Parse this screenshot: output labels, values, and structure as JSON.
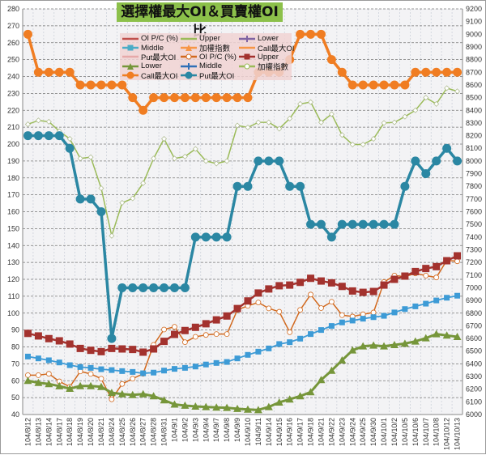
{
  "chart_data": {
    "type": "line",
    "title": "選擇權最大OI＆買賣權OI比",
    "categories": [
      "104/8/12",
      "104/8/13",
      "104/8/14",
      "104/8/17",
      "104/8/18",
      "104/8/19",
      "104/8/20",
      "104/8/21",
      "104/8/24",
      "104/8/25",
      "104/8/26",
      "104/8/27",
      "104/8/28",
      "104/8/31",
      "104/9/1",
      "104/9/2",
      "104/9/3",
      "104/9/4",
      "104/9/7",
      "104/9/8",
      "104/9/9",
      "104/9/10",
      "104/9/11",
      "104/9/14",
      "104/9/15",
      "104/9/16",
      "104/9/17",
      "104/9/18",
      "104/9/21",
      "104/9/22",
      "104/9/23",
      "104/9/24",
      "104/9/25",
      "104/9/30",
      "104/10/1",
      "104/10/2",
      "104/10/5",
      "104/10/6",
      "104/10/7",
      "104/10/8",
      "104/10/12",
      "104/10/13"
    ],
    "y_left": {
      "range": [
        40,
        280
      ],
      "step": 10
    },
    "y_right": {
      "range": [
        6000,
        9200
      ],
      "step": 100
    },
    "grid": true,
    "legend_placement": "top-center",
    "series": [
      {
        "name": "OI P/C (%)",
        "axis": "left",
        "color": "#d2691e",
        "marker": "hollow-circle",
        "values": [
          63.3,
          63.3,
          64.1,
          59.6,
          56.4,
          65.5,
          64.0,
          61.2,
          49.0,
          58.1,
          61.2,
          64.1,
          81.2,
          90.3,
          91.9,
          82.8,
          86.0,
          87.1,
          87.6,
          87.6,
          101.9,
          104.3,
          106.3,
          102.8,
          100.8,
          88.7,
          101.9,
          111.0,
          103.0,
          106.7,
          98.8,
          98.0,
          99.3,
          100.4,
          118.4,
          122.2,
          121.6,
          123.5,
          122.2,
          121.1,
          131.2,
          130.7
        ]
      },
      {
        "name": "Upper",
        "axis": "left",
        "color": "#a3322e",
        "marker": "square",
        "values": [
          88.0,
          86.5,
          84.9,
          83.6,
          81.7,
          79.1,
          78.0,
          77.2,
          79.1,
          78.8,
          78.5,
          76.9,
          78.8,
          83.3,
          87.4,
          89.7,
          91.6,
          93.7,
          96.0,
          98.3,
          102.7,
          107.2,
          111.9,
          114.3,
          116.2,
          116.6,
          118.2,
          120.6,
          119.0,
          117.9,
          115.8,
          113.1,
          112.3,
          112.8,
          116.6,
          120.0,
          121.9,
          124.6,
          126.4,
          127.5,
          131.0,
          133.9
        ]
      },
      {
        "name": "Middle",
        "axis": "left",
        "color": "#3d9bd6",
        "marker": "small-square",
        "values": [
          74.3,
          73.2,
          72.1,
          70.8,
          69.2,
          68.1,
          67.6,
          66.8,
          66.3,
          65.7,
          65.2,
          64.4,
          64.8,
          66.0,
          67.0,
          67.6,
          68.4,
          69.6,
          70.5,
          71.1,
          73.2,
          75.3,
          77.2,
          79.1,
          81.7,
          82.8,
          84.9,
          87.6,
          90.0,
          92.4,
          94.5,
          95.6,
          96.7,
          97.6,
          98.4,
          100.4,
          102.4,
          104.0,
          105.6,
          107.5,
          109.1,
          110.3
        ]
      },
      {
        "name": "Lower",
        "axis": "left",
        "color": "#76963a",
        "marker": "triangle",
        "values": [
          60.0,
          58.8,
          58.1,
          56.8,
          55.3,
          56.9,
          56.9,
          56.4,
          52.9,
          52.1,
          51.6,
          52.1,
          50.9,
          48.5,
          46.0,
          45.3,
          44.8,
          44.5,
          44.2,
          44.0,
          43.4,
          43.0,
          42.7,
          44.5,
          47.2,
          49.0,
          50.9,
          53.3,
          60.5,
          66.0,
          72.1,
          78.0,
          80.4,
          80.9,
          80.4,
          81.2,
          82.0,
          83.3,
          85.2,
          87.6,
          86.8,
          86.0
        ]
      },
      {
        "name": "加權指數",
        "axis": "right",
        "color": "#9bbb59",
        "marker": "white-diamond",
        "values": [
          8290,
          8320,
          8310,
          8235,
          8175,
          8020,
          8030,
          7785,
          7410,
          7670,
          7705,
          7825,
          8020,
          8175,
          8020,
          8035,
          8095,
          8000,
          7980,
          8000,
          8280,
          8265,
          8305,
          8305,
          8255,
          8335,
          8450,
          8465,
          8305,
          8370,
          8205,
          8130,
          8130,
          8175,
          8300,
          8305,
          8350,
          8400,
          8500,
          8450,
          8575,
          8550
        ]
      },
      {
        "name": "Call最大OI",
        "axis": "right",
        "color": "#f07d22",
        "marker": "circle",
        "values": [
          9000,
          8700,
          8700,
          8700,
          8700,
          8600,
          8600,
          8600,
          8600,
          8600,
          8500,
          8400,
          8500,
          8500,
          8500,
          8500,
          8500,
          8500,
          8500,
          8500,
          8500,
          8500,
          8700,
          8700,
          8700,
          8800,
          9000,
          9000,
          9000,
          8800,
          8700,
          8600,
          8600,
          8600,
          8600,
          8600,
          8600,
          8700,
          8700,
          8700,
          8700,
          8700
        ]
      },
      {
        "name": "Put最大OI",
        "axis": "right",
        "color": "#2b87a3",
        "marker": "circle",
        "values": [
          8200,
          8200,
          8200,
          8200,
          8100,
          7700,
          7700,
          7600,
          6600,
          7000,
          7000,
          7000,
          7000,
          7000,
          7000,
          7000,
          7400,
          7400,
          7400,
          7400,
          7800,
          7800,
          8000,
          8000,
          8000,
          7800,
          7800,
          7500,
          7500,
          7400,
          7500,
          7500,
          7500,
          7500,
          7500,
          7500,
          7800,
          8000,
          7900,
          8000,
          8100,
          8000
        ]
      }
    ],
    "legend": [
      {
        "label": "OI P/C (%)",
        "color": "#c0504d",
        "marker": "line"
      },
      {
        "label": "Upper",
        "color": "#9bbb59",
        "marker": "line"
      },
      {
        "label": "Lower",
        "color": "#8064a2",
        "marker": "diamond"
      },
      {
        "label": "Middle",
        "color": "#4bacc6",
        "marker": "square"
      },
      {
        "label": "加權指數",
        "color": "#f79646",
        "marker": "triangle"
      },
      {
        "label": "Call最大OI",
        "color": "#f79646",
        "marker": "line"
      },
      {
        "label": "Put最大OI",
        "color": "#e6a9a9",
        "marker": "line"
      },
      {
        "label": "OI P/C (%)",
        "color": "#d2691e",
        "marker": "hollow-circle"
      },
      {
        "label": "Upper",
        "color": "#a3322e",
        "marker": "square"
      },
      {
        "label": "Lower",
        "color": "#76963a",
        "marker": "triangle"
      },
      {
        "label": "Middle",
        "color": "#2f6fb7",
        "marker": "cross"
      },
      {
        "label": "加權指數",
        "color": "#9bbb59",
        "marker": "white-circle"
      },
      {
        "label": "Call最大OI",
        "color": "#f07d22",
        "marker": "circle"
      },
      {
        "label": "Put最大OI",
        "color": "#2b87a3",
        "marker": "circle"
      }
    ]
  }
}
